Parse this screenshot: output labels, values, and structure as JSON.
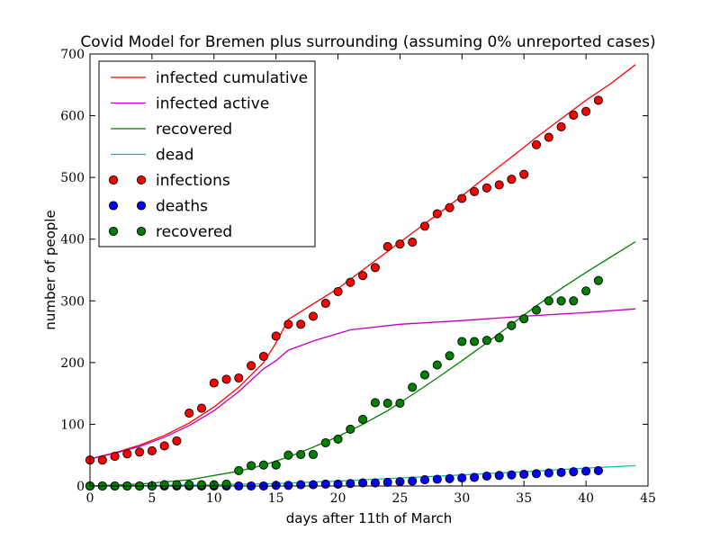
{
  "chart_data": {
    "type": "line",
    "title": "Covid Model for Bremen plus surrounding (assuming 0% unreported cases)",
    "xlabel": "days after 11th of March",
    "ylabel": "number of people",
    "xlim": [
      0,
      45
    ],
    "ylim": [
      0,
      700
    ],
    "xticks": [
      "0",
      "5",
      "10",
      "15",
      "20",
      "25",
      "30",
      "35",
      "40",
      "45"
    ],
    "yticks": [
      "0",
      "100",
      "200",
      "300",
      "400",
      "500",
      "600",
      "700"
    ],
    "grid": false,
    "legend_position": "top-left",
    "lines": [
      {
        "name": "infected cumulative",
        "color": "#ff0000",
        "x": [
          0,
          2,
          4,
          6,
          8,
          10,
          12,
          14,
          15,
          16,
          18,
          20,
          22,
          24,
          26,
          28,
          30,
          32,
          34,
          36,
          38,
          40,
          42,
          44
        ],
        "y": [
          44,
          54,
          66,
          82,
          102,
          128,
          160,
          200,
          232,
          270,
          295,
          320,
          350,
          380,
          410,
          440,
          470,
          502,
          533,
          565,
          595,
          625,
          652,
          683
        ]
      },
      {
        "name": "infected active",
        "color": "#bf00bf",
        "x": [
          0,
          2,
          4,
          6,
          8,
          10,
          12,
          14,
          15,
          16,
          18,
          21,
          25,
          30,
          35,
          40,
          44
        ],
        "y": [
          44,
          53,
          64,
          79,
          98,
          122,
          153,
          190,
          203,
          220,
          235,
          253,
          262,
          268,
          275,
          281,
          287
        ]
      },
      {
        "name": "recovered",
        "color": "#008000",
        "x": [
          0,
          4,
          8,
          12,
          14,
          16,
          18,
          20,
          22,
          24,
          26,
          28,
          30,
          32,
          34,
          36,
          38,
          40,
          42,
          44
        ],
        "y": [
          0,
          3,
          10,
          24,
          34,
          47,
          63,
          80,
          100,
          122,
          148,
          175,
          203,
          232,
          262,
          292,
          320,
          346,
          371,
          396
        ]
      },
      {
        "name": "dead",
        "color": "#00bfbf",
        "x": [
          0,
          5,
          10,
          15,
          20,
          25,
          30,
          35,
          40,
          44
        ],
        "y": [
          0,
          1,
          2,
          4,
          8,
          13,
          18,
          23,
          29,
          33
        ]
      }
    ],
    "points": [
      {
        "name": "infections",
        "color": "#ff0000",
        "x": [
          0,
          1,
          2,
          3,
          4,
          5,
          6,
          7,
          8,
          9,
          10,
          11,
          12,
          13,
          14,
          15,
          16,
          17,
          18,
          19,
          20,
          21,
          22,
          23,
          24,
          25,
          26,
          27,
          28,
          29,
          30,
          31,
          32,
          33,
          34,
          35,
          36,
          37,
          38,
          39,
          40,
          41
        ],
        "y": [
          42,
          42,
          48,
          52,
          55,
          57,
          65,
          73,
          118,
          126,
          167,
          173,
          175,
          195,
          210,
          243,
          262,
          262,
          275,
          296,
          315,
          330,
          341,
          354,
          388,
          392,
          395,
          421,
          441,
          451,
          466,
          477,
          483,
          488,
          497,
          505,
          553,
          565,
          582,
          601,
          607,
          625
        ]
      },
      {
        "name": "deaths",
        "color": "#0000ff",
        "x": [
          0,
          1,
          2,
          3,
          4,
          5,
          6,
          7,
          8,
          9,
          10,
          11,
          12,
          13,
          14,
          15,
          16,
          17,
          18,
          19,
          20,
          21,
          22,
          23,
          24,
          25,
          26,
          27,
          28,
          29,
          30,
          31,
          32,
          33,
          34,
          35,
          36,
          37,
          38,
          39,
          40,
          41
        ],
        "y": [
          0,
          0,
          0,
          0,
          0,
          0,
          0,
          0,
          0,
          0,
          0,
          0,
          0,
          0,
          0,
          1,
          1,
          2,
          2,
          3,
          3,
          4,
          5,
          5,
          6,
          7,
          8,
          10,
          11,
          12,
          13,
          14,
          16,
          17,
          18,
          19,
          20,
          21,
          22,
          23,
          24,
          25
        ]
      },
      {
        "name": "recovered",
        "color": "#008000",
        "x": [
          0,
          1,
          2,
          3,
          4,
          5,
          6,
          7,
          8,
          9,
          10,
          11,
          12,
          13,
          14,
          15,
          16,
          17,
          18,
          19,
          20,
          21,
          22,
          23,
          24,
          25,
          26,
          27,
          28,
          29,
          30,
          31,
          32,
          33,
          34,
          35,
          36,
          37,
          38,
          39,
          40,
          41
        ],
        "y": [
          0,
          0,
          0,
          0,
          0,
          0,
          2,
          2,
          2,
          2,
          2,
          3,
          25,
          33,
          34,
          34,
          50,
          51,
          51,
          70,
          76,
          92,
          108,
          135,
          134,
          134,
          160,
          180,
          196,
          211,
          234,
          234,
          236,
          240,
          260,
          271,
          285,
          300,
          300,
          300,
          316,
          333
        ]
      }
    ]
  }
}
